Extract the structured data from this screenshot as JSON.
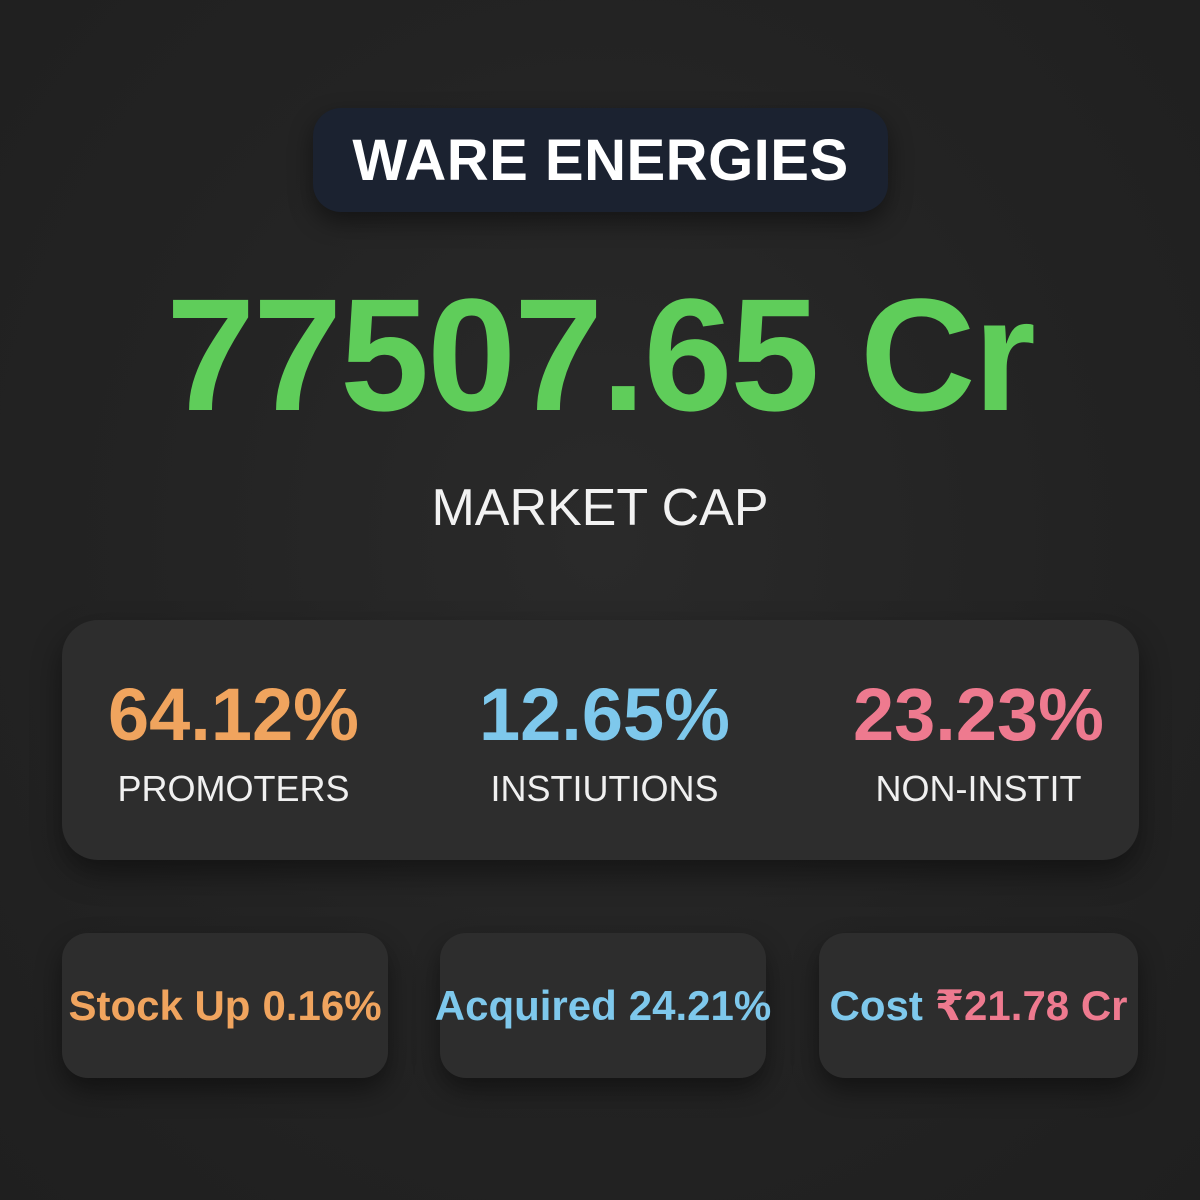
{
  "company": {
    "name": "WARE ENERGIES"
  },
  "market_cap": {
    "value": "77507.65 Cr",
    "label": "MARKET CAP",
    "color": "#5fcd5a"
  },
  "holdings": [
    {
      "percent": "64.12%",
      "label": "PROMOTERS",
      "color": "#f0a45e"
    },
    {
      "percent": "12.65%",
      "label": "INSTIUTIONS",
      "color": "#7ec8ec"
    },
    {
      "percent": "23.23%",
      "label": "NON-INSTIT",
      "color": "#ee7a8f"
    }
  ],
  "stats": {
    "stock_up": {
      "label": "Stock Up",
      "value": "0.16%",
      "color": "#f0a45e"
    },
    "acquired": {
      "label": "Acquired",
      "value": "24.21%",
      "color": "#7ec8ec"
    },
    "cost": {
      "label": "Cost",
      "value": "₹21.78 Cr",
      "label_color": "#7ec8ec",
      "value_color": "#ee7a8f"
    }
  }
}
